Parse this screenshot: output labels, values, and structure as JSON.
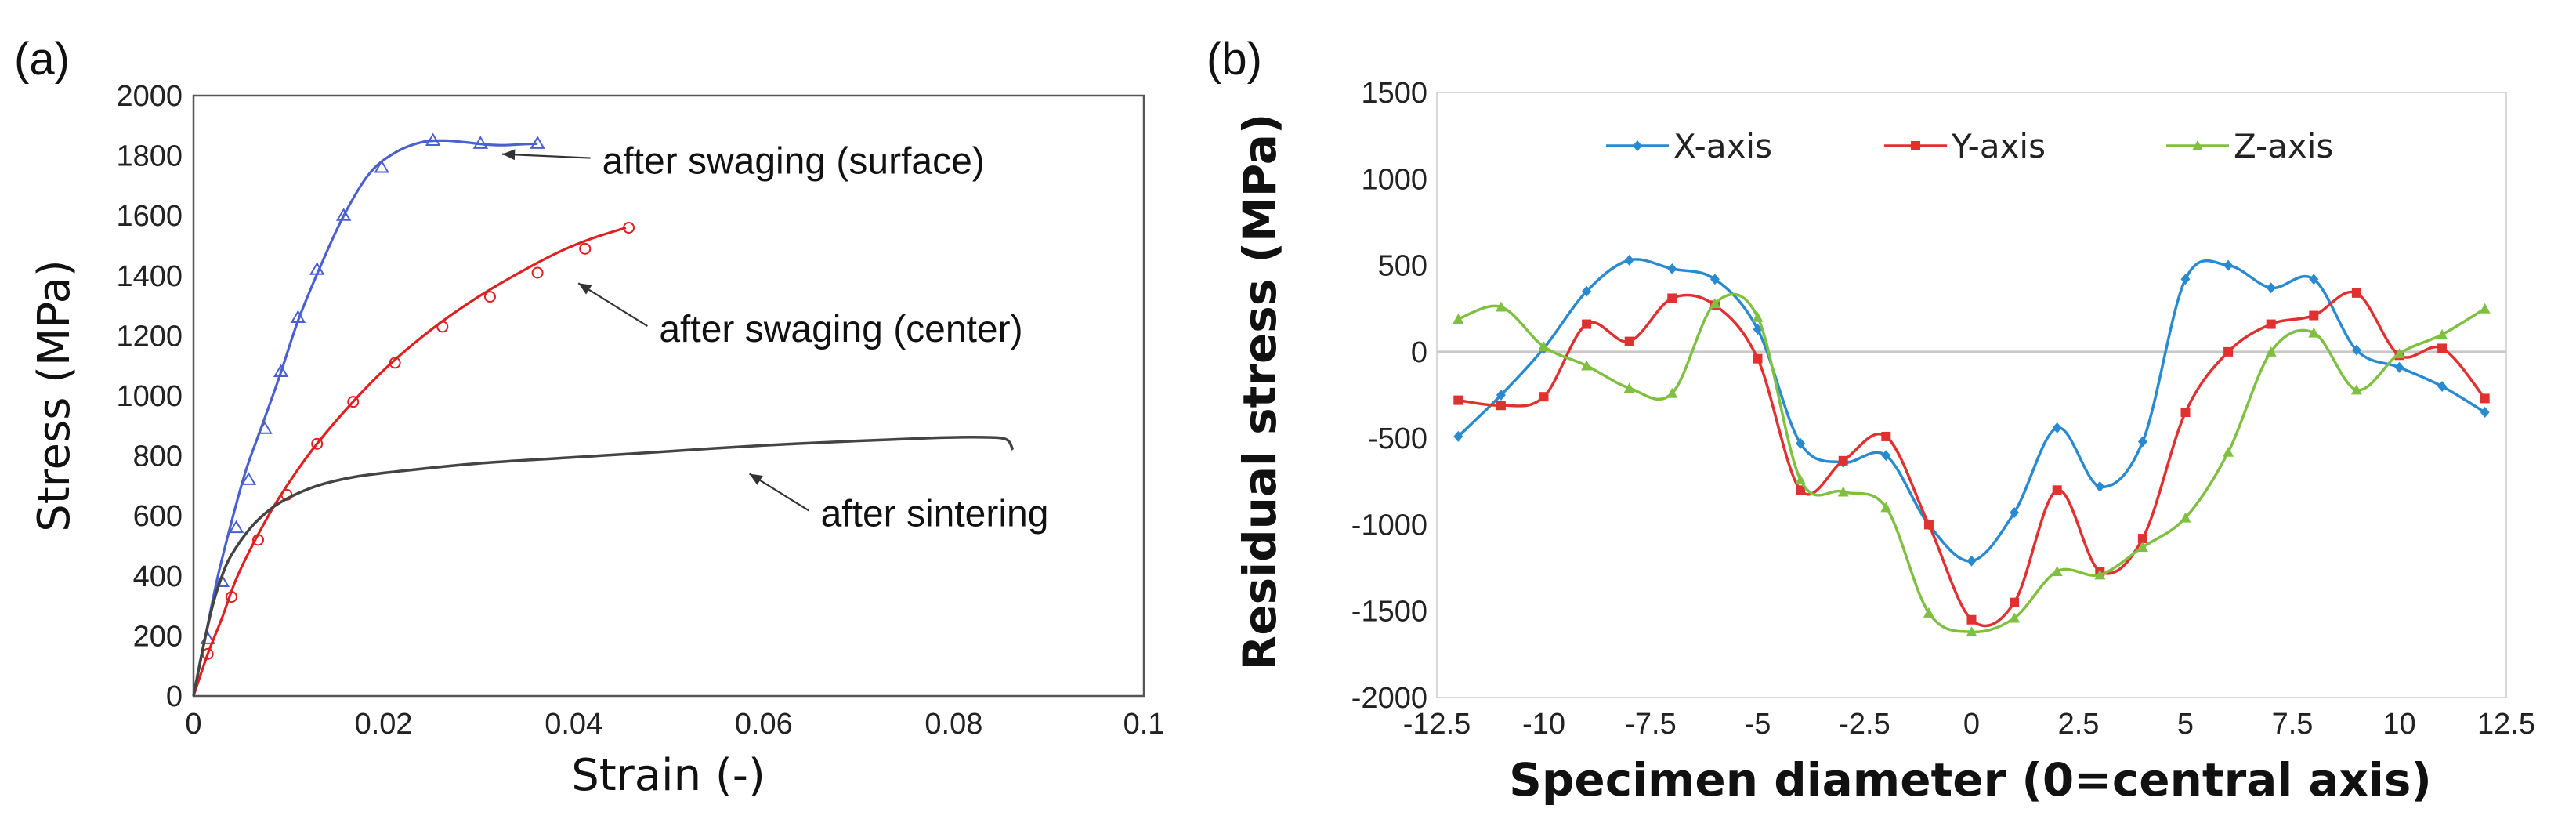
{
  "chart_data": [
    {
      "panel": "(a)",
      "type": "line",
      "xlabel": "Strain (-)",
      "ylabel": "Stress (MPa)",
      "xlim": [
        0,
        0.1
      ],
      "ylim": [
        0,
        2000
      ],
      "xticks": [
        0,
        0.02,
        0.04,
        0.06,
        0.08,
        0.1
      ],
      "xtick_labels": [
        "0",
        "0.02",
        "0.04",
        "0.06",
        "0.08",
        "0.1"
      ],
      "yticks": [
        0,
        200,
        400,
        600,
        800,
        1000,
        1200,
        1400,
        1600,
        1800,
        2000
      ],
      "ytick_labels": [
        "0",
        "200",
        "400",
        "600",
        "800",
        "1000",
        "1200",
        "1400",
        "1600",
        "1800",
        "2000"
      ],
      "series": [
        {
          "name": "after swaging (surface)",
          "color": "#4a5fd0",
          "marker": "triangle",
          "x": [
            0,
            0.0012,
            0.0025,
            0.004,
            0.0055,
            0.0072,
            0.009,
            0.011,
            0.0132,
            0.0158,
            0.0185,
            0.0212,
            0.024,
            0.0265,
            0.0285,
            0.0305,
            0.0325,
            0.0345,
            0.0362
          ],
          "y": [
            0,
            190,
            390,
            580,
            750,
            900,
            1060,
            1250,
            1420,
            1600,
            1740,
            1810,
            1845,
            1850,
            1845,
            1838,
            1835,
            1838,
            1840
          ],
          "marker_x": [
            0.0015,
            0.003,
            0.0045,
            0.0058,
            0.0075,
            0.0092,
            0.011,
            0.013,
            0.0158,
            0.0198,
            0.0252,
            0.0302,
            0.0362
          ],
          "marker_y": [
            190,
            380,
            560,
            720,
            890,
            1080,
            1260,
            1420,
            1600,
            1760,
            1850,
            1840,
            1840
          ]
        },
        {
          "name": "after swaging (center)",
          "color": "#e02020",
          "marker": "circle",
          "x": [
            0,
            0.0015,
            0.003,
            0.0045,
            0.0065,
            0.009,
            0.0125,
            0.0165,
            0.0205,
            0.025,
            0.0295,
            0.034,
            0.0385,
            0.042,
            0.0455
          ],
          "y": [
            0,
            140,
            260,
            390,
            520,
            660,
            820,
            970,
            1100,
            1220,
            1320,
            1405,
            1480,
            1525,
            1560
          ],
          "marker_x": [
            0.0015,
            0.004,
            0.0068,
            0.0098,
            0.013,
            0.0168,
            0.0212,
            0.0262,
            0.0312,
            0.0362,
            0.0412,
            0.0458
          ],
          "marker_y": [
            140,
            330,
            520,
            670,
            840,
            980,
            1110,
            1230,
            1330,
            1410,
            1490,
            1560
          ]
        },
        {
          "name": "after sintering",
          "color": "#444444",
          "marker": "none",
          "x": [
            0,
            0.001,
            0.002,
            0.003,
            0.004,
            0.006,
            0.008,
            0.01,
            0.013,
            0.017,
            0.022,
            0.03,
            0.04,
            0.05,
            0.06,
            0.07,
            0.078,
            0.083,
            0.0855,
            0.0862
          ],
          "y": [
            0,
            160,
            300,
            400,
            470,
            560,
            620,
            660,
            700,
            730,
            750,
            775,
            795,
            815,
            835,
            850,
            860,
            862,
            855,
            820
          ]
        }
      ],
      "annotations": [
        {
          "text": "after swaging (surface)",
          "x": 0.032,
          "y": 1800,
          "tx": 0.043,
          "ty": 1740
        },
        {
          "text": "after swaging (center)",
          "x": 0.04,
          "y": 1370,
          "tx": 0.049,
          "ty": 1180
        },
        {
          "text": "after sintering",
          "x": 0.058,
          "y": 735,
          "tx": 0.066,
          "ty": 565
        }
      ]
    },
    {
      "panel": "(b)",
      "type": "line",
      "xlabel": "Specimen diameter (0=central axis)",
      "ylabel": "Residual stress (MPa)",
      "xlim": [
        -12.5,
        12.5
      ],
      "ylim": [
        -2000,
        1500
      ],
      "xticks": [
        -12.5,
        -10,
        -7.5,
        -5,
        -2.5,
        0,
        2.5,
        5,
        7.5,
        10,
        12.5
      ],
      "xtick_labels": [
        "-12.5",
        "-10",
        "-7.5",
        "-5",
        "-2.5",
        "0",
        "2.5",
        "5",
        "7.5",
        "10",
        "12.5"
      ],
      "yticks": [
        -2000,
        -1500,
        -1000,
        -500,
        0,
        500,
        1000,
        1500
      ],
      "ytick_labels": [
        "-2000",
        "-1500",
        "-1000",
        "-500",
        "0",
        "500",
        "1000",
        "1500"
      ],
      "zero_line": true,
      "x": [
        -12,
        -11,
        -10,
        -9,
        -8,
        -7,
        -6,
        -5,
        -4,
        -3,
        -2,
        -1,
        0,
        1,
        2,
        3,
        4,
        5,
        6,
        7,
        8,
        9,
        10,
        11,
        12
      ],
      "series": [
        {
          "name": "X-axis",
          "color": "#2a8ad0",
          "marker": "diamond",
          "values": [
            -490,
            -250,
            20,
            350,
            530,
            480,
            420,
            130,
            -530,
            -640,
            -600,
            -1000,
            -1210,
            -930,
            -440,
            -780,
            -520,
            420,
            500,
            370,
            420,
            10,
            -90,
            -200,
            -350
          ]
        },
        {
          "name": "Y-axis",
          "color": "#e03030",
          "marker": "square",
          "values": [
            -280,
            -310,
            -260,
            160,
            60,
            310,
            270,
            -40,
            -800,
            -630,
            -490,
            -1000,
            -1550,
            -1450,
            -800,
            -1270,
            -1080,
            -350,
            0,
            160,
            210,
            340,
            -20,
            20,
            -270
          ]
        },
        {
          "name": "Z-axis",
          "color": "#80c040",
          "marker": "triangle",
          "values": [
            190,
            260,
            30,
            -80,
            -210,
            -240,
            280,
            200,
            -740,
            -810,
            -900,
            -1510,
            -1620,
            -1540,
            -1270,
            -1290,
            -1130,
            -960,
            -580,
            0,
            110,
            -220,
            -10,
            100,
            250
          ]
        }
      ]
    }
  ]
}
